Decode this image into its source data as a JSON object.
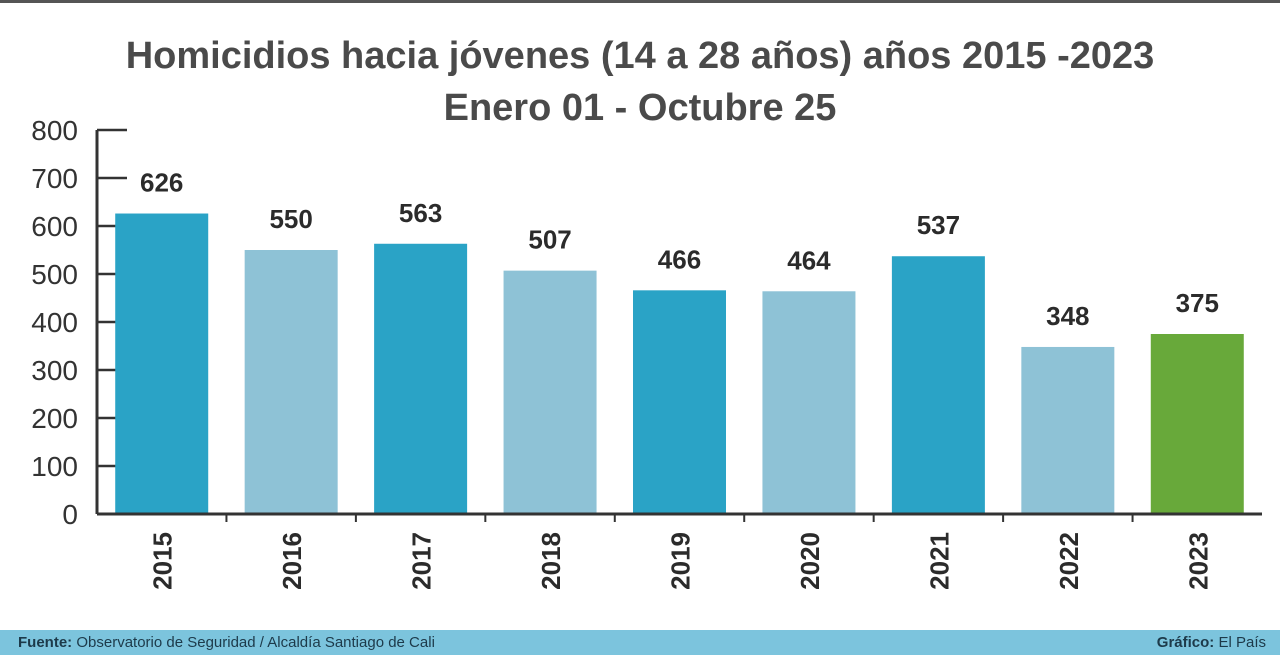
{
  "chart_data": {
    "type": "bar",
    "title": "Homicidios hacia jóvenes (14 a 28 años) años 2015 -2023",
    "subtitle": "Enero 01 - Octubre 25",
    "categories": [
      "2015",
      "2016",
      "2017",
      "2018",
      "2019",
      "2020",
      "2021",
      "2022",
      "2023"
    ],
    "values": [
      626,
      550,
      563,
      507,
      466,
      464,
      537,
      348,
      375
    ],
    "colors": [
      "#2aa3c6",
      "#8ec2d6",
      "#2aa3c6",
      "#8ec2d6",
      "#2aa3c6",
      "#8ec2d6",
      "#2aa3c6",
      "#8ec2d6",
      "#68a93a"
    ],
    "yticks": [
      "0",
      "100",
      "200",
      "300",
      "400",
      "500",
      "600",
      "700",
      "800"
    ],
    "ylim": [
      0,
      800
    ],
    "xlabel": "",
    "ylabel": "",
    "grid": false
  },
  "footer": {
    "source_label": "Fuente:",
    "source_text": "Observatorio de Seguridad / Alcaldía Santiago de Cali",
    "credit_label": "Gráfico:",
    "credit_text": "El País"
  }
}
